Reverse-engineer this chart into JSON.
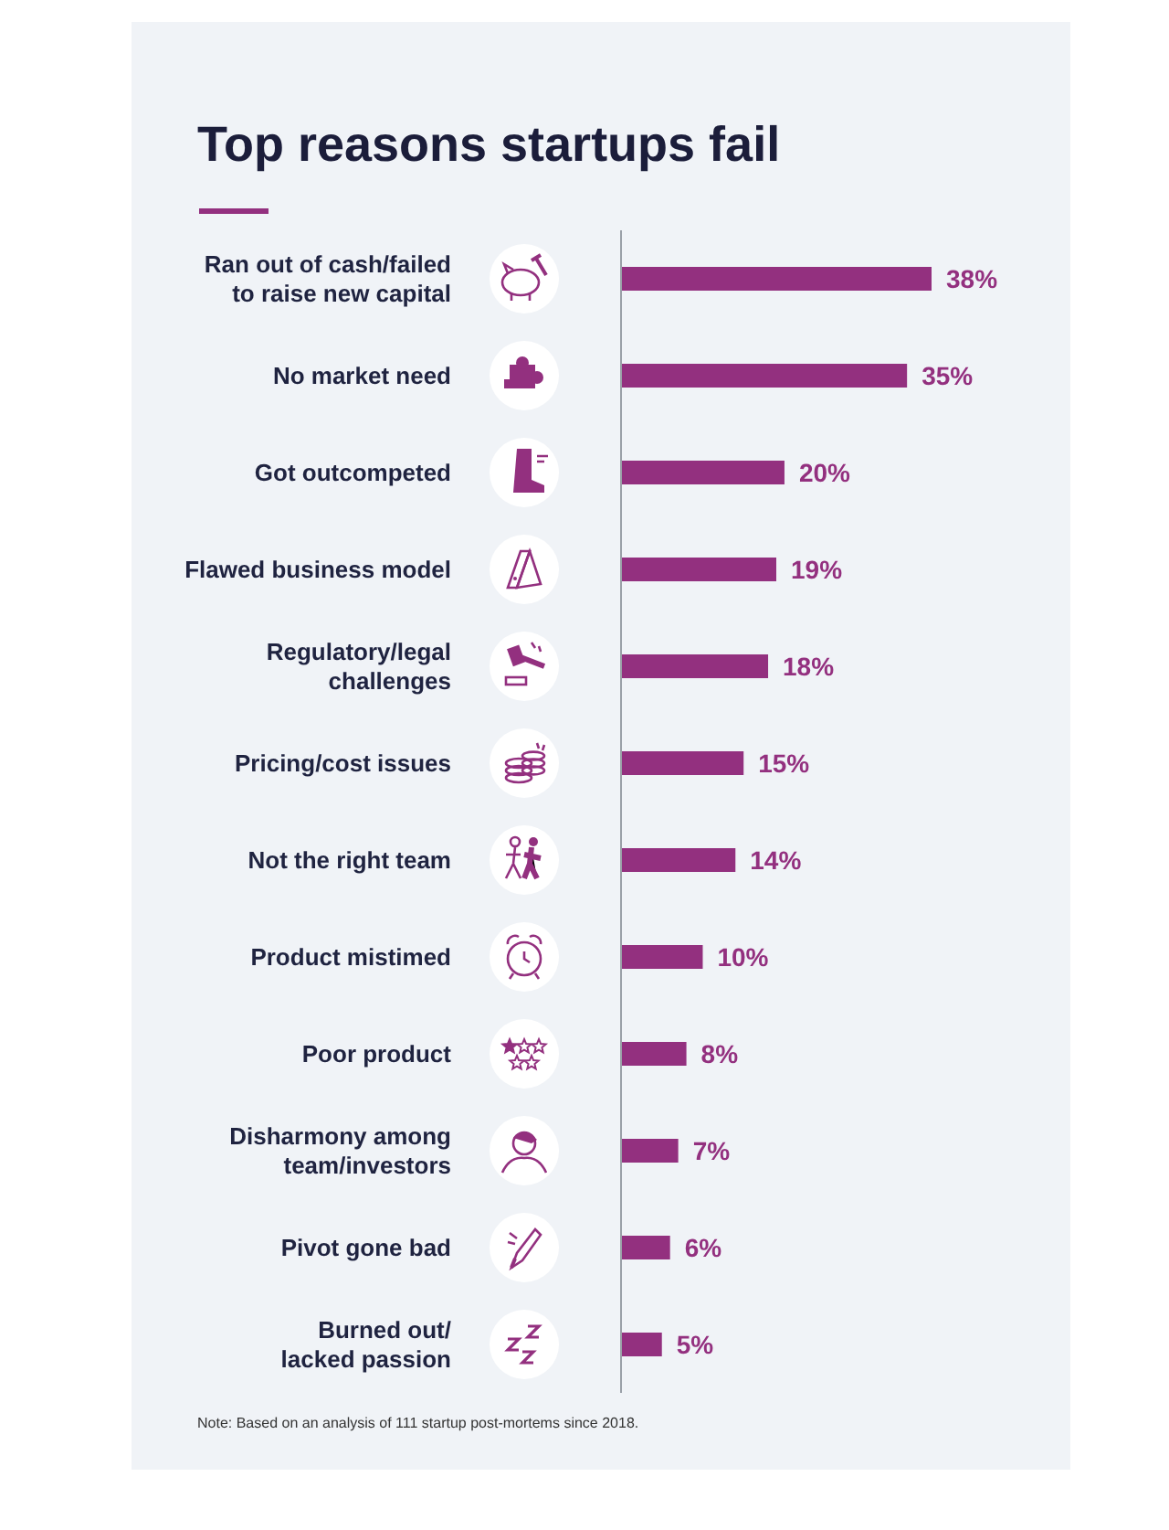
{
  "chart_data": {
    "type": "bar",
    "orientation": "horizontal",
    "title": "Top reasons startups fail",
    "categories": [
      "Ran out of cash/failed\nto raise new capital",
      "No market need",
      "Got outcompeted",
      "Flawed business model",
      "Regulatory/legal\nchallenges",
      "Pricing/cost issues",
      "Not the right team",
      "Product mistimed",
      "Poor product",
      "Disharmony among\nteam/investors",
      "Pivot gone bad",
      "Burned out/\nlacked passion"
    ],
    "values": [
      38,
      35,
      20,
      19,
      18,
      15,
      14,
      10,
      8,
      7,
      6,
      5
    ],
    "value_labels": [
      "38%",
      "35%",
      "20%",
      "19%",
      "18%",
      "15%",
      "14%",
      "10%",
      "8%",
      "7%",
      "6%",
      "5%"
    ],
    "color": "#93307f",
    "tick_labels": "y",
    "grid": false,
    "legend": false,
    "annotations": [
      "Note: Based on an analysis of 111 startup post-mortems since 2018."
    ]
  }
}
